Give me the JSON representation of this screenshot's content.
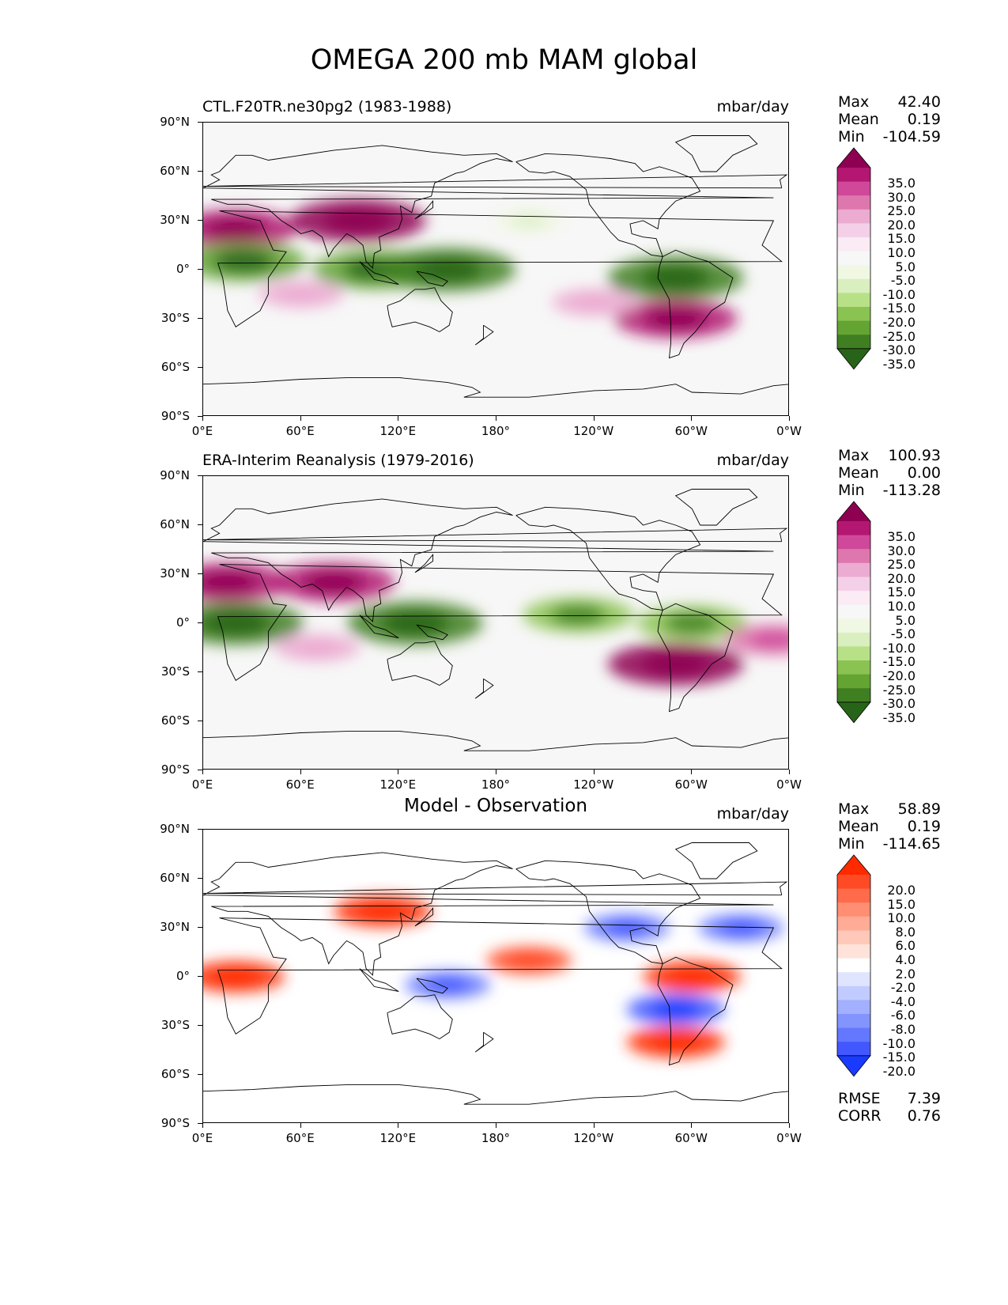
{
  "figure_title": "OMEGA 200 mb MAM global",
  "units": "mbar/day",
  "x_ticks": [
    "0°E",
    "60°E",
    "120°E",
    "180°",
    "120°W",
    "60°W",
    "0°W"
  ],
  "y_ticks": [
    "90°N",
    "60°N",
    "30°N",
    "0°",
    "30°S",
    "60°S",
    "90°S"
  ],
  "panels": [
    {
      "title": "CTL.F20TR.ne30pg2 (1983-1988)",
      "units": "mbar/day",
      "stats": {
        "max_label": "Max",
        "max": "42.40",
        "mean_label": "Mean",
        "mean": "0.19",
        "min_label": "Min",
        "min": "-104.59"
      }
    },
    {
      "title": "ERA-Interim Reanalysis (1979-2016)",
      "units": "mbar/day",
      "stats": {
        "max_label": "Max",
        "max": "100.93",
        "mean_label": "Mean",
        "mean": "0.00",
        "min_label": "Min",
        "min": "-113.28"
      }
    },
    {
      "title": "Model - Observation",
      "units": "mbar/day",
      "stats": {
        "max_label": "Max",
        "max": "58.89",
        "mean_label": "Mean",
        "mean": "0.19",
        "min_label": "Min",
        "min": "-114.65"
      },
      "rmse_label": "RMSE",
      "rmse": "7.39",
      "corr_label": "CORR",
      "corr": "0.76"
    }
  ],
  "colorbars": {
    "field": {
      "labels": [
        "35.0",
        "30.0",
        "25.0",
        "20.0",
        "15.0",
        "10.0",
        "5.0",
        "-5.0",
        "-10.0",
        "-15.0",
        "-20.0",
        "-25.0",
        "-30.0",
        "-35.0"
      ],
      "colors": [
        "#8e0152",
        "#b31772",
        "#d0489a",
        "#de77ae",
        "#ecabd1",
        "#f4d0e8",
        "#faebf4",
        "#f7f7f7",
        "#f0f7e3",
        "#d9efbf",
        "#b8e187",
        "#8bc352",
        "#63a433",
        "#407f21",
        "#276419"
      ]
    },
    "diff": {
      "labels": [
        "20.0",
        "15.0",
        "10.0",
        "8.0",
        "6.0",
        "4.0",
        "2.0",
        "-2.0",
        "-4.0",
        "-6.0",
        "-8.0",
        "-10.0",
        "-15.0",
        "-20.0"
      ],
      "colors": [
        "#ff2a00",
        "#ff4a26",
        "#ff6b4b",
        "#ff8e72",
        "#ffab95",
        "#ffc8b8",
        "#ffe3da",
        "#ffffff",
        "#dfe5ff",
        "#c1cbff",
        "#a2b0ff",
        "#8394ff",
        "#6477ff",
        "#4257ff",
        "#1a3bff"
      ]
    }
  },
  "chart_data": [
    {
      "type": "heatmap",
      "title": "CTL.F20TR.ne30pg2 (1983-1988)",
      "variable": "OMEGA 200 mb MAM",
      "units": "mbar/day",
      "xlim": [
        0,
        360
      ],
      "ylim": [
        -90,
        90
      ],
      "features": [
        {
          "lon": 20,
          "lat": 25,
          "value": 30
        },
        {
          "lon": 25,
          "lat": 5,
          "value": -30
        },
        {
          "lon": 105,
          "lat": 0,
          "value": -30
        },
        {
          "lon": 150,
          "lat": 0,
          "value": -35
        },
        {
          "lon": 290,
          "lat": -5,
          "value": -35
        },
        {
          "lon": 290,
          "lat": -30,
          "value": 30
        },
        {
          "lon": 60,
          "lat": -15,
          "value": 15
        },
        {
          "lon": 240,
          "lat": -20,
          "value": 15
        },
        {
          "lon": 95,
          "lat": 30,
          "value": 35
        },
        {
          "lon": 200,
          "lat": 30,
          "value": -10
        }
      ]
    },
    {
      "type": "heatmap",
      "title": "ERA-Interim Reanalysis (1979-2016)",
      "variable": "OMEGA 200 mb MAM",
      "units": "mbar/day",
      "xlim": [
        0,
        360
      ],
      "ylim": [
        -90,
        90
      ],
      "features": [
        {
          "lon": 15,
          "lat": 25,
          "value": 30
        },
        {
          "lon": 20,
          "lat": 0,
          "value": -35
        },
        {
          "lon": 130,
          "lat": 0,
          "value": -35
        },
        {
          "lon": 230,
          "lat": 5,
          "value": -25
        },
        {
          "lon": 300,
          "lat": 0,
          "value": -25
        },
        {
          "lon": 290,
          "lat": -25,
          "value": 35
        },
        {
          "lon": 70,
          "lat": -15,
          "value": 15
        },
        {
          "lon": 350,
          "lat": -10,
          "value": 20
        },
        {
          "lon": 80,
          "lat": 25,
          "value": 30
        }
      ]
    },
    {
      "type": "heatmap",
      "title": "Model - Observation",
      "variable": "OMEGA 200 mb MAM difference",
      "units": "mbar/day",
      "xlim": [
        0,
        360
      ],
      "ylim": [
        -90,
        90
      ],
      "features": [
        {
          "lon": 110,
          "lat": 40,
          "value": 20
        },
        {
          "lon": 300,
          "lat": 0,
          "value": 20
        },
        {
          "lon": 200,
          "lat": 10,
          "value": 15
        },
        {
          "lon": 290,
          "lat": -20,
          "value": -20
        },
        {
          "lon": 20,
          "lat": 0,
          "value": 20
        },
        {
          "lon": 150,
          "lat": -5,
          "value": -15
        },
        {
          "lon": 260,
          "lat": 30,
          "value": -15
        },
        {
          "lon": 330,
          "lat": 30,
          "value": -15
        },
        {
          "lon": 290,
          "lat": -40,
          "value": 20
        }
      ],
      "rmse": 7.39,
      "corr": 0.76
    }
  ]
}
